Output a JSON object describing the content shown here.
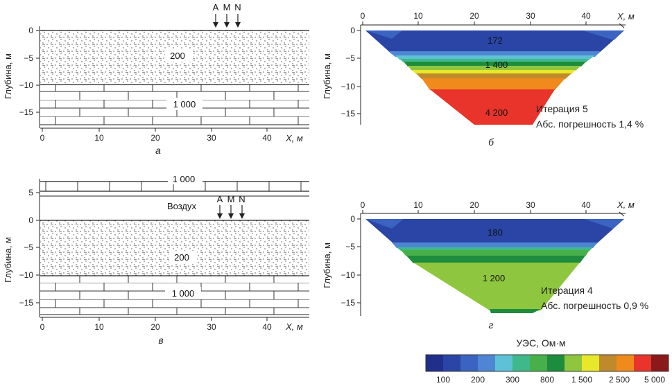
{
  "panel_a": {
    "letter": "а",
    "electrodes": [
      "A",
      "M",
      "N"
    ],
    "layers": [
      {
        "label": "200",
        "value": 200,
        "top": 0,
        "bottom": -10
      },
      {
        "label": "1 000",
        "value": 1000,
        "top": -10,
        "bottom": -17
      }
    ],
    "y_ticks": [
      "0",
      "−5",
      "−10",
      "−15"
    ],
    "x_ticks": [
      "0",
      "10",
      "20",
      "30",
      "40"
    ],
    "y_label": "Глубина, м",
    "x_label": "X, м"
  },
  "panel_v": {
    "letter": "в",
    "electrodes": [
      "A",
      "M",
      "N"
    ],
    "air_label": "Воздух",
    "layers": [
      {
        "label": "1 000",
        "value": 1000,
        "top": 7,
        "bottom": 5
      },
      {
        "label": "200",
        "value": 200,
        "top": 0,
        "bottom": -10
      },
      {
        "label": "1 000",
        "value": 1000,
        "top": -10,
        "bottom": -17
      }
    ],
    "y_ticks": [
      "5",
      "0",
      "−5",
      "−10",
      "−15"
    ],
    "x_ticks": [
      "0",
      "10",
      "20",
      "30",
      "40"
    ],
    "y_label": "Глубина, м",
    "x_label": "X, м"
  },
  "panel_b": {
    "letter": "б",
    "iteration": "Итерация 5",
    "error": "Абс. погрешность 1,4 %",
    "values": [
      "172",
      "1 400",
      "4 200"
    ],
    "y_ticks": [
      "0",
      "−5",
      "−10",
      "−15"
    ],
    "x_ticks": [
      "0",
      "10",
      "20",
      "30",
      "40"
    ],
    "y_label": "Глубина, м",
    "x_label": "X, м"
  },
  "panel_g": {
    "letter": "г",
    "iteration": "Итерация 4",
    "error": "Абс. погрешность 0,9 %",
    "values": [
      "180",
      "1 200"
    ],
    "y_ticks": [
      "0",
      "−5",
      "−10",
      "−15"
    ],
    "x_ticks": [
      "0",
      "10",
      "20",
      "30",
      "40"
    ],
    "y_label": "Глубина, м",
    "x_label": "X, м"
  },
  "colorbar": {
    "title": "УЭС, Ом·м",
    "colors": [
      "#1f2f8a",
      "#2a45a6",
      "#3a63c2",
      "#4f86d4",
      "#5ec1d6",
      "#3fb88a",
      "#48b04a",
      "#1d8c3c",
      "#8fc63f",
      "#e8e82a",
      "#bf8a2a",
      "#f08a1c",
      "#e8342a",
      "#8a1a1a"
    ],
    "labels": [
      "100",
      "200",
      "300",
      "800",
      "1 500",
      "2 500",
      "5 000"
    ]
  }
}
